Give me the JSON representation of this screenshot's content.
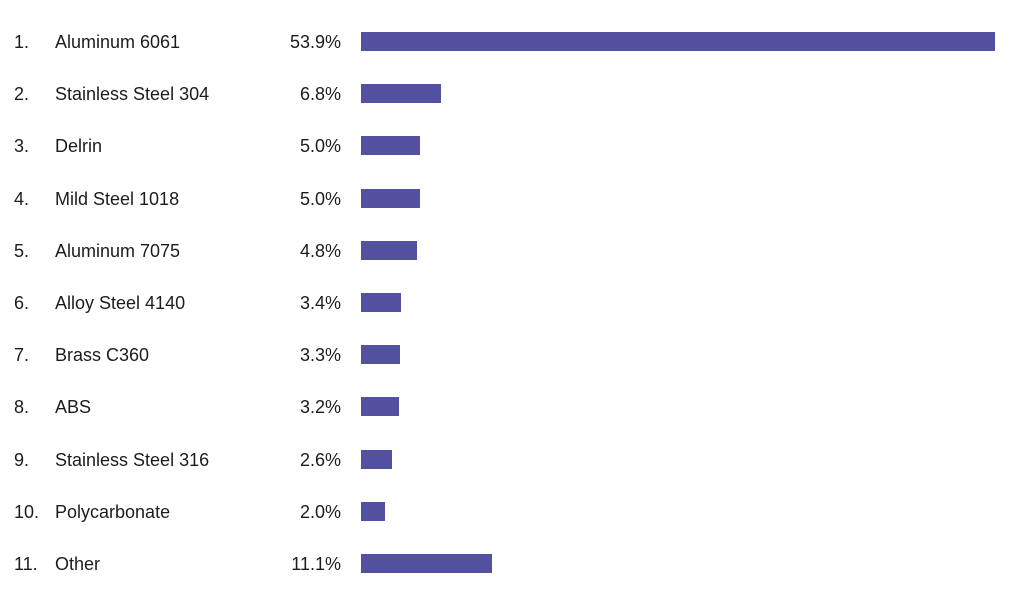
{
  "chart_data": {
    "type": "bar",
    "orientation": "horizontal",
    "title": "",
    "xlabel": "",
    "ylabel": "",
    "bar_color": "#5450a0",
    "value_suffix": "%",
    "categories": [
      "Aluminum 6061",
      "Stainless Steel 304",
      "Delrin",
      "Mild Steel 1018",
      "Aluminum 7075",
      "Alloy Steel 4140",
      "Brass C360",
      "ABS",
      "Stainless Steel 316",
      "Polycarbonate",
      "Other"
    ],
    "values": [
      53.9,
      6.8,
      5.0,
      5.0,
      4.8,
      3.4,
      3.3,
      3.2,
      2.6,
      2.0,
      11.1
    ],
    "grid": false,
    "legend": null
  },
  "rows": [
    {
      "rank": "1.",
      "label": "Aluminum 6061",
      "value_text": "53.9%",
      "value": 53.9
    },
    {
      "rank": "2.",
      "label": "Stainless Steel 304",
      "value_text": "6.8%",
      "value": 6.8
    },
    {
      "rank": "3.",
      "label": "Delrin",
      "value_text": "5.0%",
      "value": 5.0
    },
    {
      "rank": "4.",
      "label": "Mild Steel 1018",
      "value_text": "5.0%",
      "value": 5.0
    },
    {
      "rank": "5.",
      "label": "Aluminum 7075",
      "value_text": "4.8%",
      "value": 4.8
    },
    {
      "rank": "6.",
      "label": "Alloy Steel 4140",
      "value_text": "3.4%",
      "value": 3.4
    },
    {
      "rank": "7.",
      "label": "Brass C360",
      "value_text": "3.3%",
      "value": 3.3
    },
    {
      "rank": "8.",
      "label": "ABS",
      "value_text": "3.2%",
      "value": 3.2
    },
    {
      "rank": "9.",
      "label": "Stainless Steel 316",
      "value_text": "2.6%",
      "value": 2.6
    },
    {
      "rank": "10.",
      "label": "Polycarbonate",
      "value_text": "2.0%",
      "value": 2.0
    },
    {
      "rank": "11.",
      "label": "Other",
      "value_text": "11.1%",
      "value": 11.1
    }
  ]
}
